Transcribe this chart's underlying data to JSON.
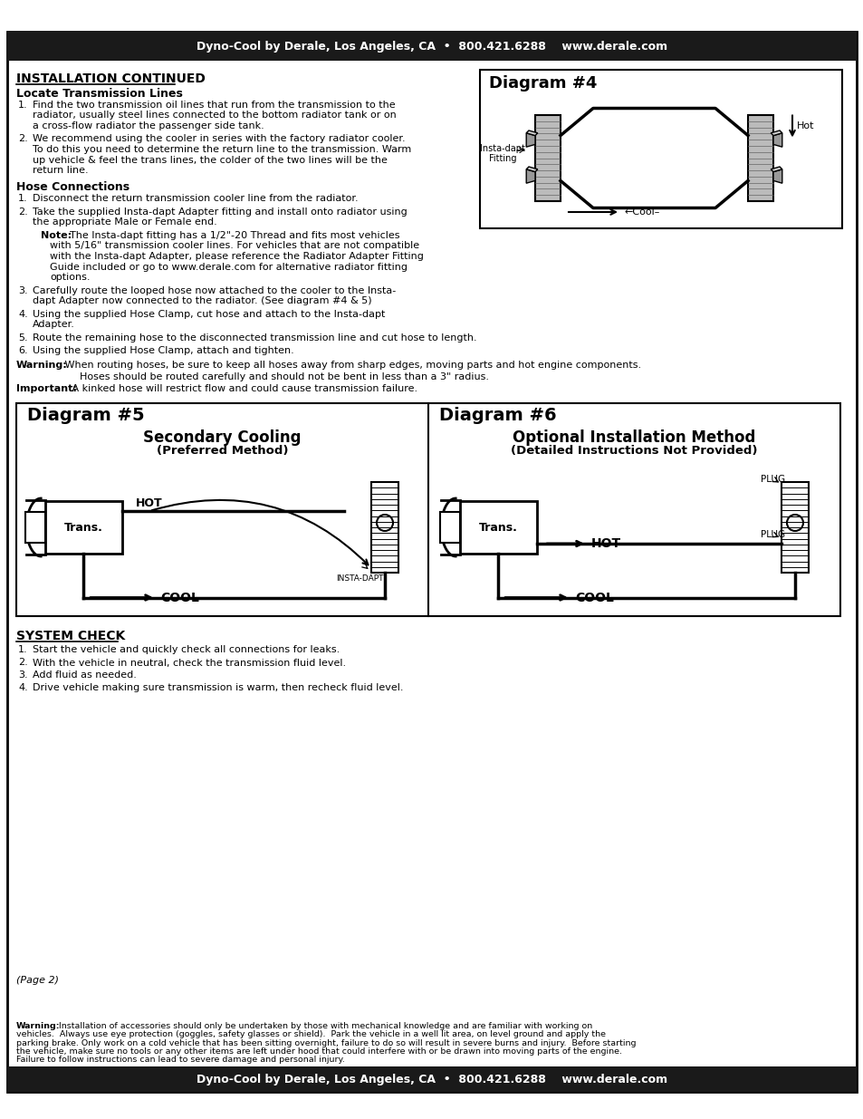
{
  "page_bg": "#ffffff",
  "border_color": "#000000",
  "title_bar_bg": "#1a1a1a",
  "title_bar_text": "Dyno-Cool by Derale, Los Angeles, CA  •  800.421.6288    www.derale.com",
  "title_bar_text_color": "#ffffff",
  "section_title": "INSTALLATION CONTINUED",
  "locate_title": "Locate Transmission Lines",
  "hose_title": "Hose Connections",
  "items_5_6": [
    "Route the remaining hose to the disconnected transmission line and cut hose to length.",
    "Using the supplied Hose Clamp, attach and tighten."
  ],
  "warning_text_bold": "Warning:",
  "warning_text_rest": " When routing hoses, be sure to keep all hoses away from sharp edges, moving parts and hot engine components.",
  "warning_text_line2": "Hoses should be routed carefully and should not be bent in less than a 3\" radius.",
  "important_bold": "Important:",
  "important_rest": " A kinked hose will restrict flow and could cause transmission failure.",
  "diag4_title": "Diagram #4",
  "diag4_hot": "Hot",
  "diag4_cool": "←Cool–",
  "diag4_insta": "Insta-dapt\nFitting",
  "diag5_title": "Diagram #5",
  "diag5_sub1": "Secondary Cooling",
  "diag5_sub2": "(Preferred Method)",
  "diag6_title": "Diagram #6",
  "diag6_sub1": "Optional Installation Method",
  "diag6_sub2": "(Detailed Instructions Not Provided)",
  "system_check_title": "SYSTEM CHECK",
  "system_check_items": [
    "Start the vehicle and quickly check all connections for leaks.",
    "With the vehicle in neutral, check the transmission fluid level.",
    "Add fluid as needed.",
    "Drive vehicle making sure transmission is warm, then recheck fluid level."
  ],
  "page_note": "(Page 2)",
  "footer_bar_text": "Dyno-Cool by Derale, Los Angeles, CA  •  800.421.6288    www.derale.com",
  "footer_warning_lines": [
    [
      "Warning:",
      " Installation of accessories should only be undertaken by those with mechanical knowledge and are familiar with working on"
    ],
    [
      "",
      "vehicles.  Always use eye protection (goggles, safety glasses or shield).  Park the vehicle in a well lit area, on level ground and apply the"
    ],
    [
      "",
      "parking brake. Only work on a cold vehicle that has been sitting overnight, failure to do so will result in severe burns and injury.  Before starting"
    ],
    [
      "",
      "the vehicle, make sure no tools or any other items are left under hood that could interfere with or be drawn into moving parts of the engine."
    ],
    [
      "",
      "Failure to follow instructions can lead to severe damage and personal injury."
    ]
  ],
  "locate_items_wrapped": [
    [
      "Find the two transmission oil lines that run from the transmission to the",
      "radiator, usually steel lines connected to the bottom radiator tank or on",
      "a cross-flow radiator the passenger side tank."
    ],
    [
      "We recommend using the cooler in series with the factory radiator cooler.",
      "To do this you need to determine the return line to the transmission. Warm",
      "up vehicle & feel the trans lines, the colder of the two lines will be the",
      "return line."
    ]
  ],
  "hose_items_wrapped": [
    [
      "Disconnect the return transmission cooler line from the radiator."
    ],
    [
      "Take the supplied Insta-dapt Adapter fitting and install onto radiator using",
      "the appropriate Male or Female end."
    ]
  ],
  "note_lines": [
    "The Insta-dapt fitting has a 1/2\"-20 Thread and fits most vehicles",
    "with 5/16\" transmission cooler lines. For vehicles that are not compatible",
    "with the Insta-dapt Adapter, please reference the Radiator Adapter Fitting",
    "Guide included or go to www.derale.com for alternative radiator fitting",
    "options."
  ],
  "hose_items_3_4_wrapped": [
    [
      "Carefully route the looped hose now attached to the cooler to the Insta-",
      "dapt Adapter now connected to the radiator. (See diagram #4 & 5)"
    ],
    [
      "Using the supplied Hose Clamp, cut hose and attach to the Insta-dapt",
      "Adapter."
    ]
  ]
}
